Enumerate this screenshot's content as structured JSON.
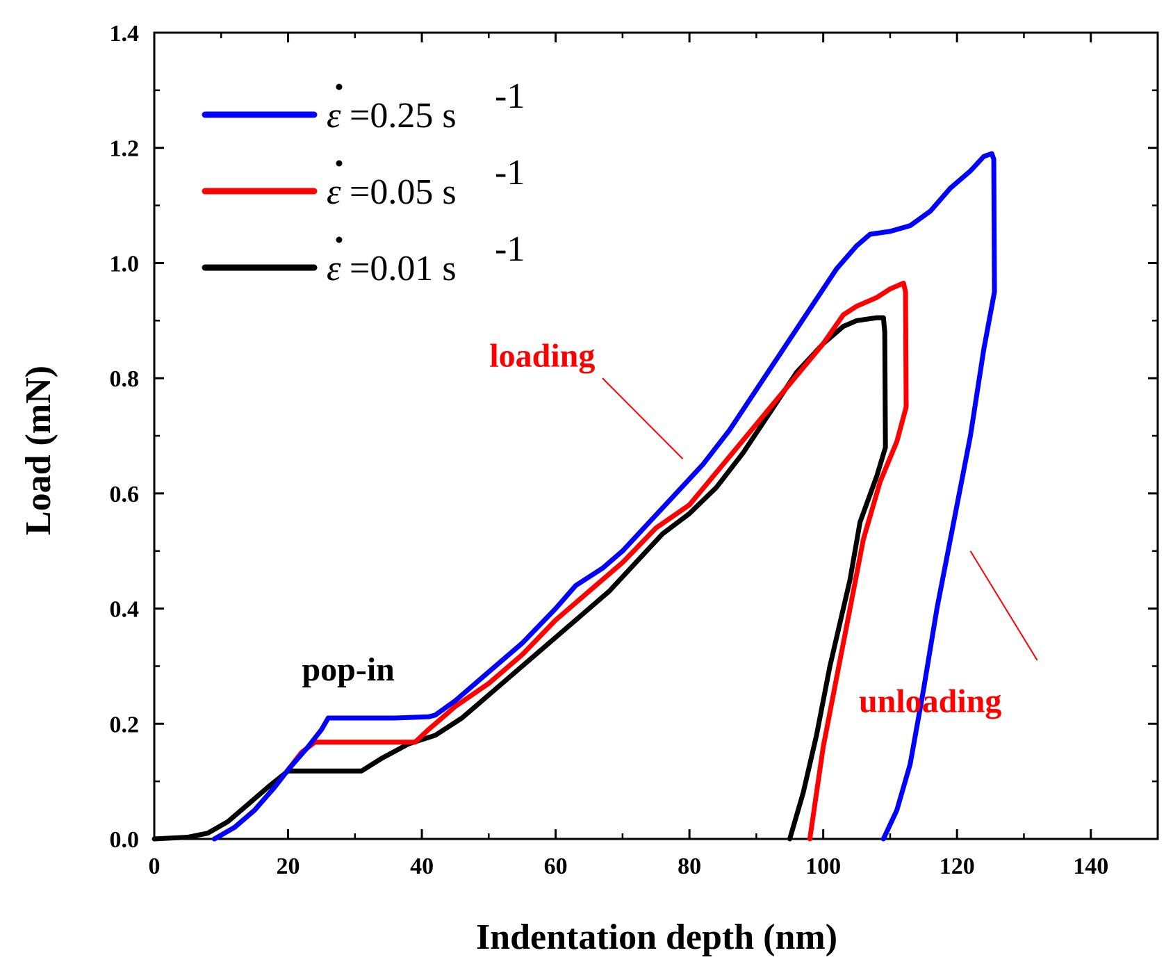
{
  "chart_data": {
    "type": "line",
    "xlabel": "Indentation depth (nm)",
    "ylabel": "Load (mN)",
    "xlim": [
      0,
      150
    ],
    "ylim": [
      0,
      1.4
    ],
    "xticks": [
      "0",
      "20",
      "40",
      "60",
      "80",
      "100",
      "120",
      "140"
    ],
    "yticks": [
      "0.0",
      "0.2",
      "0.4",
      "0.6",
      "0.8",
      "1.0",
      "1.2",
      "1.4"
    ],
    "legend_position": "top-left",
    "series": [
      {
        "name": "ε̇=0.25 s-1",
        "symbol": "ε",
        "value_text": "=0.25 s",
        "exponent": "-1",
        "color": "#0000ff",
        "points": [
          [
            9,
            0
          ],
          [
            12,
            0.02
          ],
          [
            15,
            0.05
          ],
          [
            18,
            0.09
          ],
          [
            20,
            0.12
          ],
          [
            23,
            0.16
          ],
          [
            25,
            0.19
          ],
          [
            26,
            0.21
          ],
          [
            30,
            0.21
          ],
          [
            36,
            0.21
          ],
          [
            41,
            0.212
          ],
          [
            42,
            0.215
          ],
          [
            45,
            0.24
          ],
          [
            50,
            0.29
          ],
          [
            55,
            0.34
          ],
          [
            60,
            0.4
          ],
          [
            63,
            0.44
          ],
          [
            67,
            0.47
          ],
          [
            70,
            0.5
          ],
          [
            74,
            0.55
          ],
          [
            78,
            0.6
          ],
          [
            82,
            0.65
          ],
          [
            86,
            0.71
          ],
          [
            90,
            0.78
          ],
          [
            94,
            0.85
          ],
          [
            98,
            0.92
          ],
          [
            102,
            0.99
          ],
          [
            105,
            1.03
          ],
          [
            107,
            1.05
          ],
          [
            110,
            1.055
          ],
          [
            113,
            1.065
          ],
          [
            116,
            1.09
          ],
          [
            119,
            1.13
          ],
          [
            122,
            1.16
          ],
          [
            124,
            1.185
          ],
          [
            125.2,
            1.19
          ],
          [
            125.5,
            1.18
          ],
          [
            125.6,
            0.95
          ],
          [
            124,
            0.85
          ],
          [
            122,
            0.7
          ],
          [
            119,
            0.52
          ],
          [
            117,
            0.4
          ],
          [
            115,
            0.26
          ],
          [
            113,
            0.13
          ],
          [
            111,
            0.05
          ],
          [
            109,
            0
          ]
        ]
      },
      {
        "name": "ε̇=0.05 s-1",
        "symbol": "ε",
        "value_text": "=0.05 s",
        "exponent": "-1",
        "color": "#ff0000",
        "points": [
          [
            9,
            0
          ],
          [
            12,
            0.02
          ],
          [
            15,
            0.05
          ],
          [
            18,
            0.09
          ],
          [
            20,
            0.12
          ],
          [
            22,
            0.15
          ],
          [
            24,
            0.168
          ],
          [
            28,
            0.168
          ],
          [
            34,
            0.168
          ],
          [
            39,
            0.168
          ],
          [
            41,
            0.19
          ],
          [
            45,
            0.23
          ],
          [
            50,
            0.27
          ],
          [
            55,
            0.32
          ],
          [
            60,
            0.38
          ],
          [
            65,
            0.43
          ],
          [
            70,
            0.48
          ],
          [
            75,
            0.54
          ],
          [
            80,
            0.58
          ],
          [
            85,
            0.65
          ],
          [
            90,
            0.72
          ],
          [
            95,
            0.79
          ],
          [
            100,
            0.86
          ],
          [
            103,
            0.91
          ],
          [
            105,
            0.925
          ],
          [
            108,
            0.94
          ],
          [
            110,
            0.955
          ],
          [
            112,
            0.965
          ],
          [
            112.3,
            0.95
          ],
          [
            112.4,
            0.75
          ],
          [
            111,
            0.69
          ],
          [
            108.5,
            0.62
          ],
          [
            106,
            0.52
          ],
          [
            104,
            0.4
          ],
          [
            102,
            0.28
          ],
          [
            100,
            0.16
          ],
          [
            99,
            0.08
          ],
          [
            98,
            0
          ]
        ]
      },
      {
        "name": "ε̇=0.01 s-1",
        "symbol": "ε",
        "value_text": "=0.01 s",
        "exponent": "-1",
        "color": "#000000",
        "points": [
          [
            0,
            0
          ],
          [
            5,
            0.003
          ],
          [
            8,
            0.01
          ],
          [
            11,
            0.03
          ],
          [
            14,
            0.06
          ],
          [
            17,
            0.09
          ],
          [
            20,
            0.118
          ],
          [
            25,
            0.118
          ],
          [
            31,
            0.118
          ],
          [
            34,
            0.14
          ],
          [
            38,
            0.165
          ],
          [
            42,
            0.18
          ],
          [
            46,
            0.21
          ],
          [
            50,
            0.25
          ],
          [
            55,
            0.3
          ],
          [
            60,
            0.35
          ],
          [
            64,
            0.39
          ],
          [
            68,
            0.43
          ],
          [
            72,
            0.48
          ],
          [
            76,
            0.53
          ],
          [
            80,
            0.565
          ],
          [
            84,
            0.61
          ],
          [
            88,
            0.67
          ],
          [
            92,
            0.74
          ],
          [
            96,
            0.81
          ],
          [
            100,
            0.86
          ],
          [
            103,
            0.89
          ],
          [
            105,
            0.9
          ],
          [
            108,
            0.905
          ],
          [
            109,
            0.905
          ],
          [
            109.2,
            0.88
          ],
          [
            109.3,
            0.68
          ],
          [
            108,
            0.63
          ],
          [
            105.5,
            0.55
          ],
          [
            104,
            0.45
          ],
          [
            101,
            0.3
          ],
          [
            99,
            0.18
          ],
          [
            97,
            0.08
          ],
          [
            95,
            0
          ]
        ]
      }
    ],
    "annotations": [
      {
        "text": "pop-in",
        "color": "#000000",
        "x": 29,
        "y": 0.275
      },
      {
        "text": "loading",
        "color": "#ff0000",
        "x": 58,
        "y": 0.82,
        "pointer_from": [
          67,
          0.8
        ],
        "pointer_to": [
          79,
          0.66
        ]
      },
      {
        "text": "unloading",
        "color": "#ff0000",
        "x": 116,
        "y": 0.22,
        "pointer_from": [
          132,
          0.31
        ],
        "pointer_to": [
          122,
          0.5
        ]
      }
    ]
  }
}
